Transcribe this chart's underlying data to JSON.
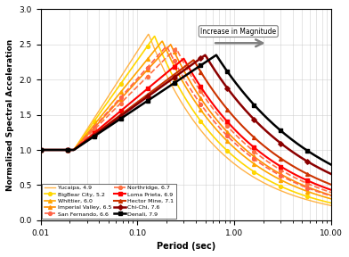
{
  "title": "",
  "xlabel": "Period (sec)",
  "ylabel": "Normalized Spectral Acceleration",
  "xlim": [
    0.01,
    10.0
  ],
  "ylim": [
    0.0,
    3.0
  ],
  "annotation_text": "Increase in Magnitude",
  "series": [
    {
      "label": "Yucaipa, 4.9",
      "mag": 4.9,
      "color": "#FFB347",
      "marker": "None",
      "linestyle": "-",
      "lw": 1.0,
      "peak_x": 0.13,
      "peak_y": 2.65,
      "fall": 1.35
    },
    {
      "label": "BigBear City, 5.2",
      "mag": 5.2,
      "color": "#FFD700",
      "marker": "o",
      "linestyle": "-",
      "lw": 1.2,
      "peak_x": 0.15,
      "peak_y": 2.62,
      "fall": 1.3
    },
    {
      "label": "Whittier, 6.0",
      "mag": 6.0,
      "color": "#FFA500",
      "marker": "^",
      "linestyle": "-",
      "lw": 1.2,
      "peak_x": 0.18,
      "peak_y": 2.55,
      "fall": 1.22
    },
    {
      "label": "Imperial Valley, 6.5",
      "mag": 6.5,
      "color": "#FF8C00",
      "marker": "^",
      "linestyle": "-",
      "lw": 1.2,
      "peak_x": 0.22,
      "peak_y": 2.5,
      "fall": 1.18
    },
    {
      "label": "San Fernando, 6.6",
      "mag": 6.6,
      "color": "#FF6347",
      "marker": "o",
      "linestyle": "--",
      "lw": 1.2,
      "peak_x": 0.2,
      "peak_y": 2.48,
      "fall": 1.16
    },
    {
      "label": "Northridge, 6.7",
      "mag": 6.7,
      "color": "#FF7043",
      "marker": "o",
      "linestyle": "--",
      "lw": 1.2,
      "peak_x": 0.25,
      "peak_y": 2.45,
      "fall": 1.14
    },
    {
      "label": "Loma Prieta, 6.9",
      "mag": 6.9,
      "color": "#FF0000",
      "marker": "s",
      "linestyle": "-",
      "lw": 1.5,
      "peak_x": 0.3,
      "peak_y": 2.3,
      "fall": 1.1
    },
    {
      "label": "Hector Mine, 7.1",
      "mag": 7.1,
      "color": "#CC3300",
      "marker": "^",
      "linestyle": "-",
      "lw": 1.5,
      "peak_x": 0.38,
      "peak_y": 2.28,
      "fall": 1.06
    },
    {
      "label": "Chi-Chi, 7.6",
      "mag": 7.6,
      "color": "#8B0000",
      "marker": "D",
      "linestyle": "-",
      "lw": 1.8,
      "peak_x": 0.5,
      "peak_y": 2.35,
      "fall": 0.98
    },
    {
      "label": "Denali, 7.9",
      "mag": 7.9,
      "color": "#000000",
      "marker": "s",
      "linestyle": "-",
      "lw": 1.8,
      "peak_x": 0.65,
      "peak_y": 2.35,
      "fall": 0.92
    }
  ]
}
